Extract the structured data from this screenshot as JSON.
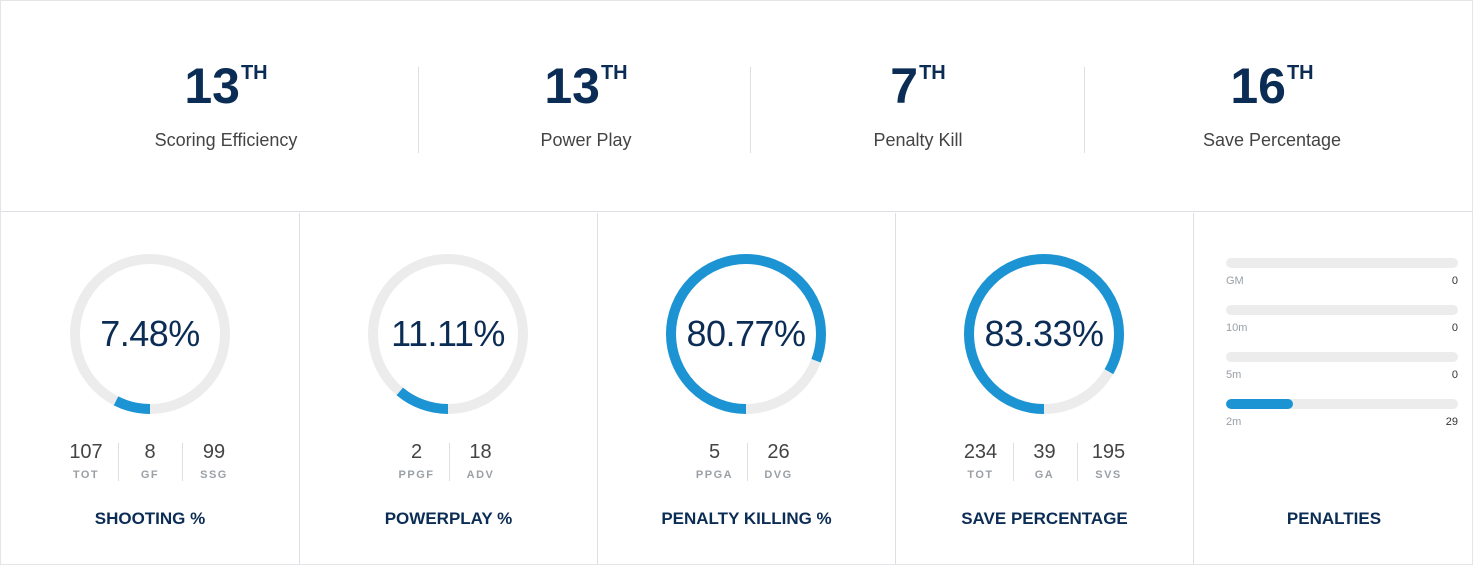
{
  "rankings": [
    {
      "rank": "13",
      "suffix": "TH",
      "label": "Scoring Efficiency"
    },
    {
      "rank": "13",
      "suffix": "TH",
      "label": "Power Play"
    },
    {
      "rank": "7",
      "suffix": "TH",
      "label": "Penalty Kill"
    },
    {
      "rank": "16",
      "suffix": "TH",
      "label": "Save Percentage"
    }
  ],
  "cards": [
    {
      "title": "SHOOTING %",
      "value": "7.48%",
      "fraction": 0.0748,
      "stats": [
        {
          "value": "107",
          "label": "TOT"
        },
        {
          "value": "8",
          "label": "GF"
        },
        {
          "value": "99",
          "label": "SSG"
        }
      ]
    },
    {
      "title": "POWERPLAY %",
      "value": "11.11%",
      "fraction": 0.1111,
      "stats": [
        {
          "value": "2",
          "label": "PPGF"
        },
        {
          "value": "18",
          "label": "ADV"
        }
      ]
    },
    {
      "title": "PENALTY KILLING %",
      "value": "80.77%",
      "fraction": 0.8077,
      "stats": [
        {
          "value": "5",
          "label": "PPGA"
        },
        {
          "value": "26",
          "label": "DVG"
        }
      ]
    },
    {
      "title": "SAVE PERCENTAGE",
      "value": "83.33%",
      "fraction": 0.8333,
      "stats": [
        {
          "value": "234",
          "label": "TOT"
        },
        {
          "value": "39",
          "label": "GA"
        },
        {
          "value": "195",
          "label": "SVS"
        }
      ]
    }
  ],
  "penalties": {
    "title": "PENALTIES",
    "items": [
      {
        "label": "GM",
        "value": "0",
        "fraction": 0
      },
      {
        "label": "10m",
        "value": "0",
        "fraction": 0
      },
      {
        "label": "5m",
        "value": "0",
        "fraction": 0
      },
      {
        "label": "2m",
        "value": "29",
        "fraction": 0.29
      }
    ]
  },
  "colors": {
    "accent": "#1c94d4",
    "track": "#ececec",
    "navy": "#0b2d55"
  }
}
